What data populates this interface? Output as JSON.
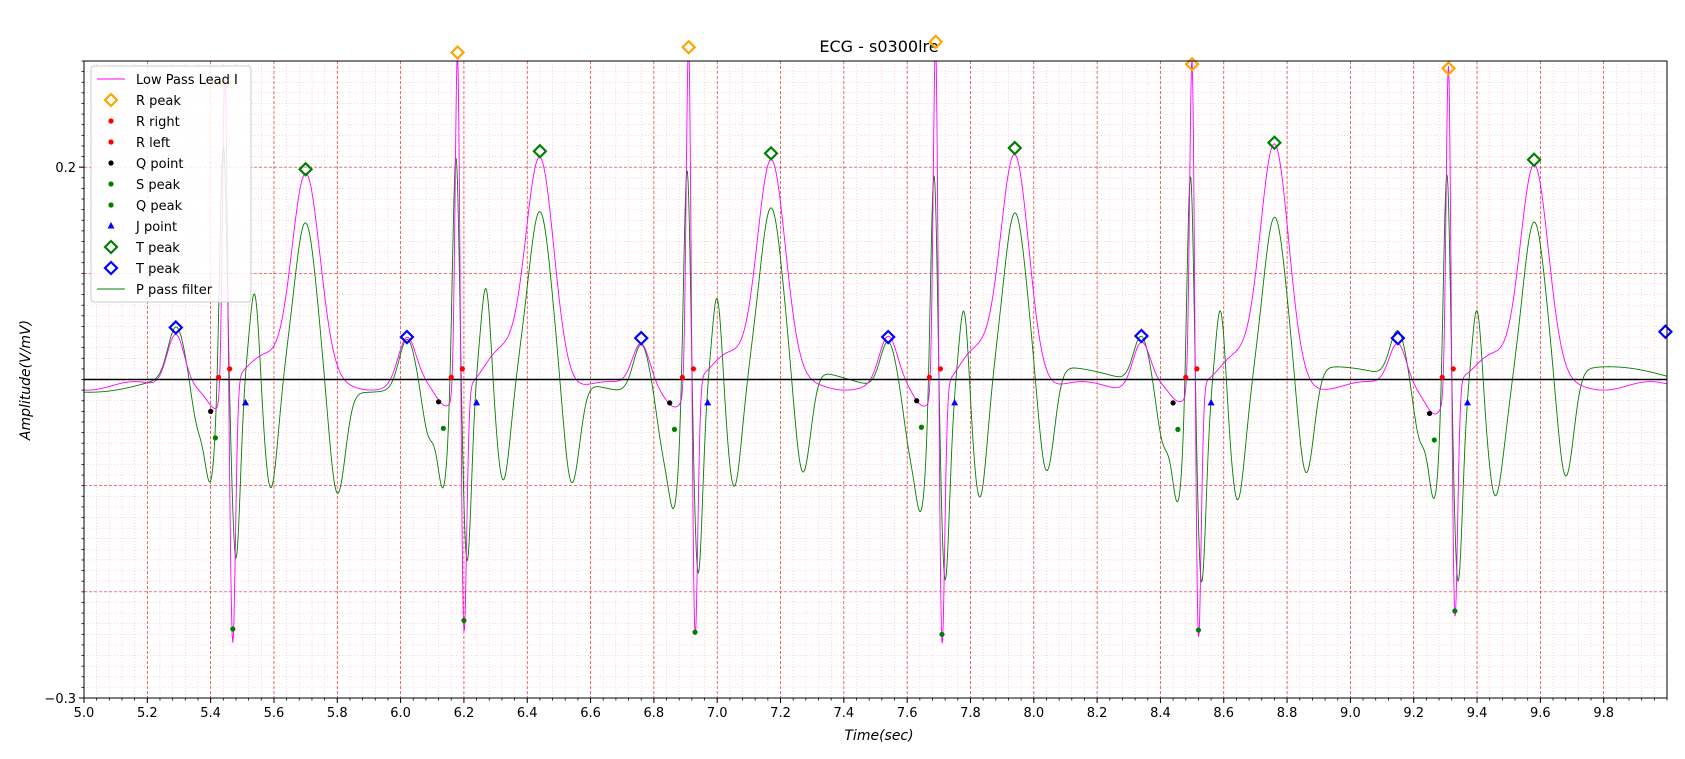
{
  "chart_data": {
    "type": "line",
    "title": "ECG - s0300lre",
    "xlabel": "Time(sec)",
    "ylabel": "Amplitude(V/mV)",
    "xlim": [
      5.0,
      10.0
    ],
    "ylim": [
      -0.3,
      0.3
    ],
    "x_ticks": [
      "5.0",
      "5.2",
      "5.4",
      "5.6",
      "5.8",
      "6.0",
      "6.2",
      "6.4",
      "6.6",
      "6.8",
      "7.0",
      "7.2",
      "7.4",
      "7.6",
      "7.8",
      "8.0",
      "8.2",
      "8.4",
      "8.6",
      "8.8",
      "9.0",
      "9.2",
      "9.4",
      "9.6",
      "9.8"
    ],
    "y_ticks": [
      "0.2",
      "−0.3"
    ],
    "y_tick_values": [
      0.2,
      -0.3
    ],
    "grid": "major red dashed, minor pink dotted",
    "legend_position": "top-left",
    "legend": [
      {
        "label": "Low Pass Lead I",
        "kind": "line",
        "color": "#ff00ff"
      },
      {
        "label": "R peak",
        "kind": "diamond",
        "color": "#ffa500"
      },
      {
        "label": "R right",
        "kind": "dot",
        "color": "#ff0000"
      },
      {
        "label": "R left",
        "kind": "dot",
        "color": "#ff0000"
      },
      {
        "label": "Q point",
        "kind": "dot",
        "color": "#000000"
      },
      {
        "label": "S peak",
        "kind": "dot",
        "color": "#008000"
      },
      {
        "label": "Q peak",
        "kind": "dot",
        "color": "#008000"
      },
      {
        "label": "J point",
        "kind": "triangle",
        "color": "#0000ff"
      },
      {
        "label": "T peak",
        "kind": "diamond",
        "color": "#008000"
      },
      {
        "label": "T peak",
        "kind": "diamond",
        "color": "#0000ff"
      },
      {
        "label": "P pass filter",
        "kind": "line",
        "color": "#008000"
      }
    ],
    "beats": [
      {
        "p": [
          5.29,
          0.049
        ],
        "q": [
          5.42,
          -0.035
        ],
        "r": [
          5.445,
          0.28
        ],
        "s": [
          5.47,
          -0.235
        ],
        "tp": [
          5.7,
          0.198
        ]
      },
      {
        "p": [
          6.02,
          0.04
        ],
        "q": [
          6.14,
          -0.026
        ],
        "r": [
          6.18,
          0.308
        ],
        "s": [
          6.2,
          -0.227
        ],
        "tp": [
          6.44,
          0.215
        ]
      },
      {
        "p": [
          6.76,
          0.039
        ],
        "q": [
          6.87,
          -0.027
        ],
        "r": [
          6.91,
          0.313
        ],
        "s": [
          6.93,
          -0.238
        ],
        "tp": [
          7.17,
          0.213
        ]
      },
      {
        "p": [
          7.54,
          0.04
        ],
        "q": [
          7.65,
          -0.025
        ],
        "r": [
          7.69,
          0.318
        ],
        "s": [
          7.71,
          -0.24
        ],
        "tp": [
          7.94,
          0.218
        ]
      },
      {
        "p": [
          8.34,
          0.041
        ],
        "q": [
          8.46,
          -0.027
        ],
        "r": [
          8.5,
          0.297
        ],
        "s": [
          8.52,
          -0.236
        ],
        "tp": [
          8.76,
          0.223
        ]
      },
      {
        "p": [
          9.15,
          0.039
        ],
        "q": [
          9.27,
          -0.037
        ],
        "r": [
          9.31,
          0.293
        ],
        "s": [
          9.33,
          -0.218
        ],
        "tp": [
          9.58,
          0.207
        ]
      }
    ],
    "series": [
      {
        "name": "Low Pass Lead I",
        "color": "#ff00ff"
      },
      {
        "name": "P pass filter",
        "color": "#008000"
      }
    ]
  }
}
